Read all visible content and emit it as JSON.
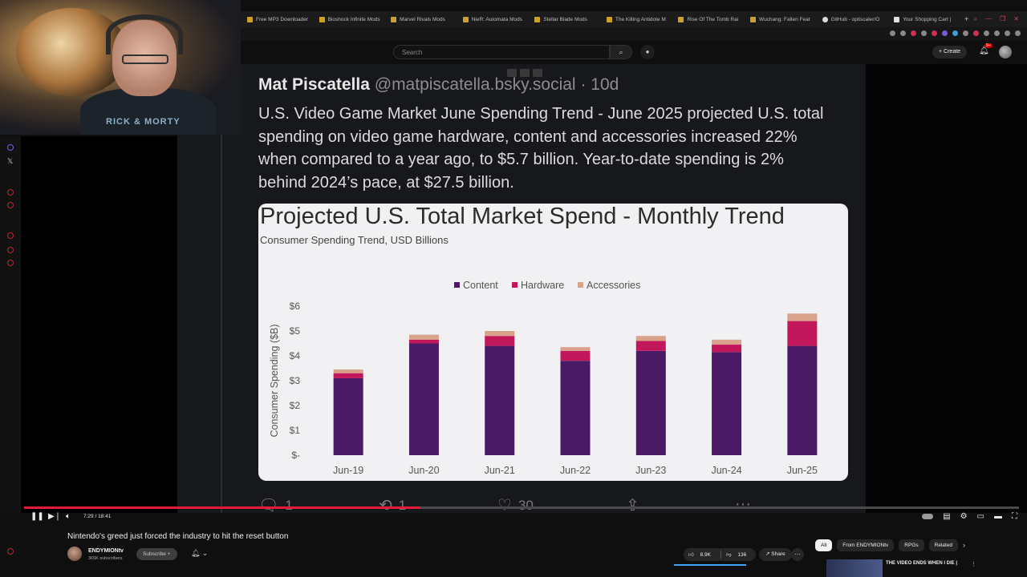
{
  "browser": {
    "tabs": [
      {
        "label": "Free MP3 Downloader",
        "icon": "folder-icon"
      },
      {
        "label": "Bioshock Infinite Mods",
        "icon": "folder-icon"
      },
      {
        "label": "Marvel Rivals Mods",
        "icon": "folder-icon"
      },
      {
        "label": "NieR: Automata Mods",
        "icon": "folder-icon"
      },
      {
        "label": "Stellar Blade Mods",
        "icon": "folder-icon"
      },
      {
        "label": "The Killing Antidote M",
        "icon": "folder-icon"
      },
      {
        "label": "Rise Of The Tomb Rai",
        "icon": "folder-icon"
      },
      {
        "label": "Wuchang: Fallen Feat",
        "icon": "folder-icon"
      },
      {
        "label": "GitHub - optiscaler/O",
        "icon": "github-icon"
      },
      {
        "label": "Your Shopping Cart |",
        "icon": "cart-icon"
      }
    ]
  },
  "masthead": {
    "search_placeholder": "Search",
    "create_label": "Create",
    "notifications_badge": "9+"
  },
  "post": {
    "author_name": "Mat Piscatella",
    "handle": "@matpiscatella.bsky.social",
    "age": "· 10d",
    "body": "U.S. Video Game Market June Spending Trend - June 2025 projected U.S. total spending on video game hardware, content and accessories increased 22% when compared to a year ago, to $5.7 billion. Year-to-date spending is 2% behind 2024’s pace, at $27.5 billion.",
    "replies": "1",
    "reposts": "1",
    "likes": "30"
  },
  "chart_data": {
    "type": "bar",
    "stacked": true,
    "title": "Projected U.S. Total Market Spend - Monthly Trend",
    "subtitle": "Consumer Spending Trend, USD Billions",
    "ylabel": "Consumer Spending ($B)",
    "xlabel": "",
    "ylim": [
      0,
      6
    ],
    "yticks": [
      "$-",
      "$1",
      "$2",
      "$3",
      "$4",
      "$5",
      "$6"
    ],
    "legend_position": "top-center",
    "categories": [
      "Jun-19",
      "Jun-20",
      "Jun-21",
      "Jun-22",
      "Jun-23",
      "Jun-24",
      "Jun-25"
    ],
    "series": [
      {
        "name": "Content",
        "color": "#4b1a66",
        "values": [
          3.1,
          4.5,
          4.4,
          3.8,
          4.2,
          4.15,
          4.4
        ]
      },
      {
        "name": "Hardware",
        "color": "#c2185b",
        "values": [
          0.2,
          0.15,
          0.4,
          0.4,
          0.4,
          0.3,
          1.0
        ]
      },
      {
        "name": "Accessories",
        "color": "#d9a28a",
        "values": [
          0.15,
          0.2,
          0.2,
          0.15,
          0.2,
          0.2,
          0.3
        ]
      }
    ],
    "grid": false
  },
  "player": {
    "time": "7:29 / 18:41",
    "progress_fraction": 0.398
  },
  "video": {
    "title": "Nintendo's greed just forced the industry to hit the reset button",
    "channel": "ENDYMIONtv",
    "subscribers": "365K subscribers",
    "subscribe_label": "Subscribe",
    "likes": "8.9K",
    "dislikes": "136",
    "share_label": "Share"
  },
  "related": {
    "chips": [
      "All",
      "From ENDYMIONtv",
      "RPGs",
      "Related"
    ],
    "next_title": "THE VIDEO ENDS WHEN I DIE |"
  },
  "webcam": {
    "shirt_text": "RICK & MORTY"
  }
}
